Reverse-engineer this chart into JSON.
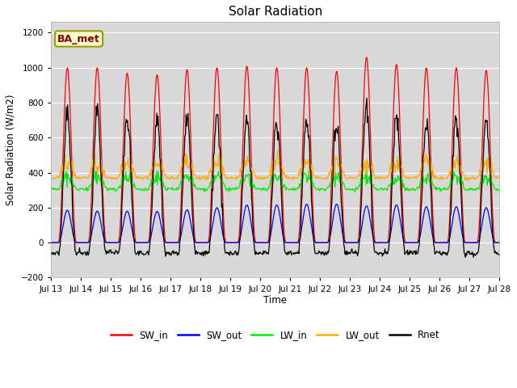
{
  "title": "Solar Radiation",
  "ylabel": "Solar Radiation (W/m2)",
  "xlabel": "Time",
  "ylim": [
    -200,
    1260
  ],
  "yticks": [
    -200,
    0,
    200,
    400,
    600,
    800,
    1000,
    1200
  ],
  "annotation": "BA_met",
  "fig_bg": "#ffffff",
  "plot_bg": "#d8d8d8",
  "series_colors": {
    "SW_in": "#ff0000",
    "SW_out": "#0000ff",
    "LW_in": "#00ee00",
    "LW_out": "#ffaa00",
    "Rnet": "#000000"
  },
  "start_day": 13,
  "end_day": 28,
  "n_days": 16,
  "pts_per_day": 48
}
